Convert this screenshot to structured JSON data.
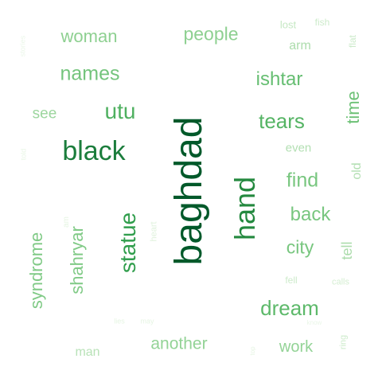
{
  "words": [
    {
      "text": "baghdad",
      "color": "#00592a"
    },
    {
      "text": "black",
      "color": "#1b7d3c"
    },
    {
      "text": "hand",
      "color": "#24893f"
    },
    {
      "text": "statue",
      "color": "#319e4d"
    },
    {
      "text": "utu",
      "color": "#4fb060"
    },
    {
      "text": "tears",
      "color": "#55b464"
    },
    {
      "text": "dream",
      "color": "#5db96a"
    },
    {
      "text": "ishtar",
      "color": "#66be72"
    },
    {
      "text": "time",
      "color": "#6dc176"
    },
    {
      "text": "names",
      "color": "#74c47c"
    },
    {
      "text": "find",
      "color": "#78c67f"
    },
    {
      "text": "back",
      "color": "#78c67f"
    },
    {
      "text": "city",
      "color": "#78c67f"
    },
    {
      "text": "shahryar",
      "color": "#80ca86"
    },
    {
      "text": "syndrome",
      "color": "#80ca86"
    },
    {
      "text": "people",
      "color": "#8ed091"
    },
    {
      "text": "woman",
      "color": "#8ed091"
    },
    {
      "text": "work",
      "color": "#93d396"
    },
    {
      "text": "another",
      "color": "#93d396"
    },
    {
      "text": "see",
      "color": "#9cd69e"
    },
    {
      "text": "arm",
      "color": "#acdcac"
    },
    {
      "text": "tell",
      "color": "#acdcac"
    },
    {
      "text": "even",
      "color": "#b2dfb2"
    },
    {
      "text": "old",
      "color": "#b2dfb2"
    },
    {
      "text": "man",
      "color": "#b8e2b7"
    },
    {
      "text": "lost",
      "color": "#c5e8c3"
    },
    {
      "text": "fish",
      "color": "#cdebcb"
    },
    {
      "text": "flat",
      "color": "#cdebcb"
    },
    {
      "text": "fell",
      "color": "#cdebcb"
    },
    {
      "text": "calls",
      "color": "#d5eed2"
    },
    {
      "text": "ring",
      "color": "#cdebcb"
    },
    {
      "text": "heart",
      "color": "#e0f2dd"
    },
    {
      "text": "am",
      "color": "#e4f4e1"
    },
    {
      "text": "lies",
      "color": "#e6f5e3"
    },
    {
      "text": "may",
      "color": "#e6f5e3"
    },
    {
      "text": "top",
      "color": "#e6f5e3"
    },
    {
      "text": "told",
      "color": "#e9f6e6"
    },
    {
      "text": "know",
      "color": "#eaf7e8"
    },
    {
      "text": "stories",
      "color": "#ebf7e9"
    }
  ]
}
